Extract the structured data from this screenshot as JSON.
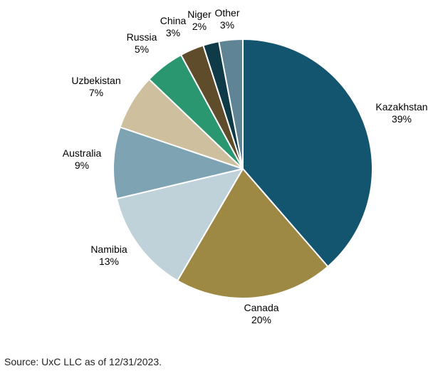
{
  "chart_data": {
    "type": "pie",
    "title": "",
    "start": "12 o'clock",
    "direction": "clockwise",
    "unit": "%",
    "slices": [
      {
        "label": "Kazakhstan",
        "value": 39,
        "color": "#13546E"
      },
      {
        "label": "Canada",
        "value": 20,
        "color": "#9E8944"
      },
      {
        "label": "Namibia",
        "value": 13,
        "color": "#BFD1D9"
      },
      {
        "label": "Australia",
        "value": 9,
        "color": "#7EA3B3"
      },
      {
        "label": "Uzbekistan",
        "value": 7,
        "color": "#CEC09F"
      },
      {
        "label": "Russia",
        "value": 5,
        "color": "#2A9770"
      },
      {
        "label": "China",
        "value": 3,
        "color": "#5E4C2B"
      },
      {
        "label": "Niger",
        "value": 2,
        "color": "#0F3A47"
      },
      {
        "label": "Other",
        "value": 3,
        "color": "#5F8496"
      }
    ]
  },
  "source_note": "Source: UxC LLC as of 12/31/2023."
}
